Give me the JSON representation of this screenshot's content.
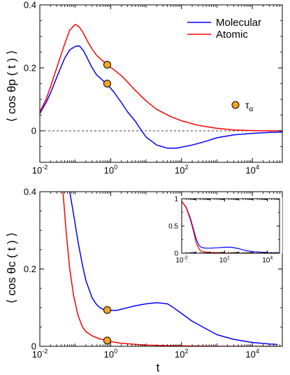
{
  "chart_data": [
    {
      "type": "line",
      "panel": "top",
      "ylabel": "⟨ cos θp ( t ) ⟩",
      "xlabel": "",
      "xscale": "log",
      "xlim": [
        0.01,
        70000
      ],
      "ylim": [
        -0.1,
        0.4
      ],
      "xticks": [
        0.01,
        1,
        100,
        10000
      ],
      "xtick_labels": [
        {
          "base": "10",
          "exp": "-2"
        },
        {
          "base": "10",
          "exp": "0"
        },
        {
          "base": "10",
          "exp": "2"
        },
        {
          "base": "10",
          "exp": "4"
        }
      ],
      "yticks": [
        0,
        0.2,
        0.4
      ],
      "ytick_labels": [
        "0",
        "0.2",
        "0.4"
      ],
      "reference_line": {
        "y": 0,
        "style": "dashed"
      },
      "legend": {
        "placement": "top-right"
      },
      "series": [
        {
          "name": "Molecular",
          "color": "#0000ff",
          "x": [
            0.01,
            0.015,
            0.02,
            0.03,
            0.05,
            0.07,
            0.1,
            0.13,
            0.17,
            0.22,
            0.3,
            0.4,
            0.6,
            0.8,
            1.2,
            2,
            3,
            5,
            7,
            10,
            20,
            40,
            70,
            100,
            200,
            500,
            1000,
            3000,
            10000,
            30000,
            70000
          ],
          "y": [
            0.055,
            0.09,
            0.12,
            0.17,
            0.23,
            0.257,
            0.268,
            0.27,
            0.255,
            0.23,
            0.2,
            0.178,
            0.16,
            0.148,
            0.125,
            0.09,
            0.06,
            0.03,
            0.005,
            -0.02,
            -0.045,
            -0.055,
            -0.055,
            -0.052,
            -0.045,
            -0.033,
            -0.022,
            -0.013,
            -0.008,
            -0.005,
            -0.004
          ]
        },
        {
          "name": "Atomic",
          "color": "#ff0000",
          "x": [
            0.01,
            0.015,
            0.02,
            0.03,
            0.05,
            0.07,
            0.1,
            0.13,
            0.17,
            0.22,
            0.3,
            0.4,
            0.6,
            0.8,
            1.2,
            2,
            3,
            5,
            10,
            20,
            50,
            100,
            300,
            1000,
            3000,
            10000,
            30000,
            70000
          ],
          "y": [
            0.06,
            0.1,
            0.14,
            0.2,
            0.275,
            0.32,
            0.338,
            0.33,
            0.31,
            0.285,
            0.26,
            0.24,
            0.222,
            0.21,
            0.195,
            0.175,
            0.155,
            0.128,
            0.095,
            0.068,
            0.045,
            0.032,
            0.017,
            0.008,
            0.003,
            0.001,
            0.0,
            0.0
          ]
        }
      ],
      "markers": [
        {
          "label": "τα",
          "x": 0.8,
          "y": 0.21,
          "fill": "#f5a623",
          "stroke": "#000000"
        },
        {
          "label": "τα",
          "x": 0.8,
          "y": 0.15,
          "fill": "#f5a623",
          "stroke": "#000000"
        }
      ],
      "marker_legend_label": {
        "base": "τ",
        "sub": "α"
      }
    },
    {
      "type": "line",
      "panel": "bottom",
      "ylabel": "⟨ cos θc ( t ) ⟩",
      "xlabel": "t",
      "xscale": "log",
      "xlim": [
        0.01,
        70000
      ],
      "ylim": [
        0,
        0.4
      ],
      "xticks": [
        0.01,
        1,
        100,
        10000
      ],
      "xtick_labels": [
        {
          "base": "10",
          "exp": "-2"
        },
        {
          "base": "10",
          "exp": "0"
        },
        {
          "base": "10",
          "exp": "2"
        },
        {
          "base": "10",
          "exp": "4"
        }
      ],
      "yticks": [
        0,
        0.2,
        0.4
      ],
      "ytick_labels": [
        "0",
        "0.2",
        "0.4"
      ],
      "series": [
        {
          "name": "Molecular",
          "color": "#0000ff",
          "x": [
            0.07,
            0.09,
            0.12,
            0.16,
            0.2,
            0.25,
            0.3,
            0.4,
            0.5,
            0.6,
            0.8,
            1,
            1.5,
            2,
            3,
            5,
            10,
            20,
            40,
            60,
            100,
            200,
            500,
            1000,
            3000,
            10000,
            30000,
            50000
          ],
          "y": [
            0.4,
            0.34,
            0.27,
            0.21,
            0.17,
            0.145,
            0.125,
            0.108,
            0.1,
            0.096,
            0.094,
            0.093,
            0.093,
            0.096,
            0.1,
            0.105,
            0.11,
            0.113,
            0.11,
            0.1,
            0.085,
            0.065,
            0.045,
            0.03,
            0.018,
            0.01,
            0.006,
            0.005
          ]
        },
        {
          "name": "Atomic",
          "color": "#ff0000",
          "x": [
            0.045,
            0.055,
            0.07,
            0.09,
            0.12,
            0.16,
            0.2,
            0.3,
            0.5,
            0.8,
            1.2,
            2,
            5,
            10,
            30,
            100,
            1000,
            50000
          ],
          "y": [
            0.4,
            0.3,
            0.2,
            0.13,
            0.08,
            0.05,
            0.038,
            0.027,
            0.019,
            0.015,
            0.011,
            0.008,
            0.005,
            0.003,
            0.002,
            0.001,
            0.0,
            0.0
          ]
        }
      ],
      "markers": [
        {
          "label": "τα",
          "x": 0.8,
          "y": 0.094,
          "fill": "#f5a623",
          "stroke": "#000000"
        },
        {
          "label": "τα",
          "x": 0.8,
          "y": 0.015,
          "fill": "#f5a623",
          "stroke": "#000000"
        }
      ]
    },
    {
      "type": "line",
      "panel": "inset",
      "xscale": "log",
      "xlim": [
        0.01,
        70000
      ],
      "ylim": [
        0,
        1
      ],
      "xticks": [
        0.01,
        10,
        10000
      ],
      "xtick_labels": [
        {
          "base": "10",
          "exp": "-2"
        },
        {
          "base": "10",
          "exp": "1"
        },
        {
          "base": "10",
          "exp": "4"
        }
      ],
      "yticks": [
        0,
        0.5,
        1
      ],
      "ytick_labels": [
        "0",
        "0.5",
        "1"
      ],
      "series": [
        {
          "name": "Molecular",
          "color": "#0000ff",
          "x": [
            0.01,
            0.02,
            0.04,
            0.07,
            0.1,
            0.15,
            0.2,
            0.3,
            0.5,
            1,
            3,
            10,
            30,
            100,
            300,
            1000,
            10000,
            50000
          ],
          "y": [
            0.95,
            0.85,
            0.65,
            0.42,
            0.27,
            0.16,
            0.12,
            0.1,
            0.095,
            0.093,
            0.1,
            0.11,
            0.11,
            0.085,
            0.05,
            0.03,
            0.01,
            0.005
          ]
        },
        {
          "name": "Atomic",
          "color": "#ff0000",
          "x": [
            0.01,
            0.02,
            0.04,
            0.07,
            0.1,
            0.15,
            0.2,
            0.3,
            0.5,
            1,
            3,
            10,
            100,
            1000,
            50000
          ],
          "y": [
            0.95,
            0.84,
            0.62,
            0.38,
            0.2,
            0.1,
            0.05,
            0.03,
            0.02,
            0.015,
            0.008,
            0.004,
            0.001,
            0.0,
            0.0
          ]
        }
      ]
    }
  ]
}
